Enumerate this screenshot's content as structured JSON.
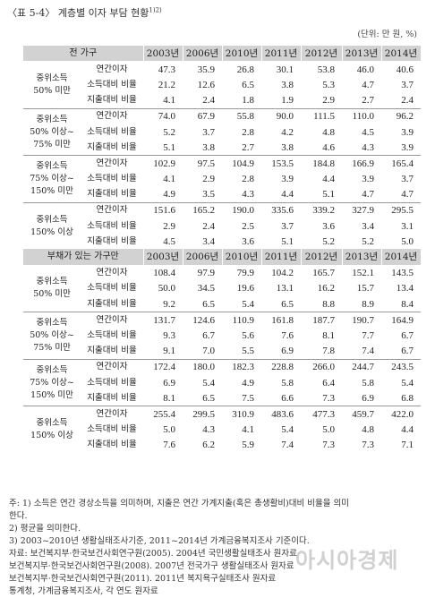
{
  "title": "〈표 5-4〉 계층별 이자 부담 현황",
  "title_sup": "1)2)",
  "unit": "(단위: 만 원, %)",
  "years": [
    "2003년",
    "2006년",
    "2010년",
    "2011년",
    "2012년",
    "2013년",
    "2014년"
  ],
  "metrics": [
    "연간이자",
    "소득대비 비율",
    "지출대비 비율"
  ],
  "sections": [
    {
      "label": "전 가구",
      "groups": [
        {
          "label": [
            "중위소득",
            "50% 미만"
          ],
          "rows": [
            [
              "47.3",
              "35.9",
              "26.8",
              "30.1",
              "53.8",
              "46.0",
              "40.6"
            ],
            [
              "21.2",
              "12.6",
              "6.5",
              "3.8",
              "5.3",
              "4.7",
              "3.7"
            ],
            [
              "4.1",
              "2.4",
              "1.8",
              "1.9",
              "2.9",
              "2.7",
              "2.4"
            ]
          ]
        },
        {
          "label": [
            "중위소득",
            "50% 이상~",
            "75% 미만"
          ],
          "rows": [
            [
              "74.0",
              "67.9",
              "55.8",
              "90.0",
              "111.5",
              "110.0",
              "96.2"
            ],
            [
              "5.2",
              "3.7",
              "2.8",
              "4.2",
              "4.8",
              "4.5",
              "3.9"
            ],
            [
              "5.1",
              "3.8",
              "2.7",
              "3.8",
              "4.6",
              "4.3",
              "3.9"
            ]
          ]
        },
        {
          "label": [
            "중위소득",
            "75% 이상~",
            "150% 미만"
          ],
          "rows": [
            [
              "102.9",
              "97.5",
              "104.9",
              "153.5",
              "184.8",
              "166.9",
              "165.4"
            ],
            [
              "4.1",
              "2.9",
              "2.8",
              "3.9",
              "4.4",
              "3.9",
              "3.7"
            ],
            [
              "4.9",
              "3.5",
              "4.3",
              "4.4",
              "5.1",
              "4.7",
              "4.7"
            ]
          ]
        },
        {
          "label": [
            "중위소득",
            "150% 이상"
          ],
          "rows": [
            [
              "151.6",
              "165.2",
              "190.0",
              "335.6",
              "339.2",
              "327.9",
              "295.5"
            ],
            [
              "2.9",
              "2.4",
              "2.5",
              "3.7",
              "3.6",
              "3.4",
              "3.1"
            ],
            [
              "4.5",
              "3.4",
              "3.6",
              "5.1",
              "5.2",
              "5.2",
              "5.0"
            ]
          ]
        }
      ]
    },
    {
      "label": "부채가 있는 가구만",
      "groups": [
        {
          "label": [
            "중위소득",
            "50% 미만"
          ],
          "rows": [
            [
              "108.4",
              "97.9",
              "79.9",
              "104.2",
              "165.7",
              "152.1",
              "143.5"
            ],
            [
              "50.0",
              "34.5",
              "19.6",
              "13.1",
              "16.2",
              "15.7",
              "13.4"
            ],
            [
              "9.2",
              "6.5",
              "5.4",
              "6.5",
              "8.8",
              "8.9",
              "8.4"
            ]
          ]
        },
        {
          "label": [
            "중위소득",
            "50% 이상~",
            "75% 미만"
          ],
          "rows": [
            [
              "131.7",
              "124.6",
              "110.9",
              "161.8",
              "187.7",
              "190.7",
              "164.9"
            ],
            [
              "9.3",
              "6.7",
              "5.6",
              "7.6",
              "8.1",
              "7.7",
              "6.7"
            ],
            [
              "9.1",
              "7.0",
              "5.5",
              "6.9",
              "7.8",
              "7.4",
              "6.7"
            ]
          ]
        },
        {
          "label": [
            "중위소득",
            "75% 이상~",
            "150% 미만"
          ],
          "rows": [
            [
              "172.4",
              "180.0",
              "182.3",
              "228.8",
              "266.0",
              "244.7",
              "243.5"
            ],
            [
              "6.9",
              "5.4",
              "4.9",
              "5.8",
              "6.4",
              "5.8",
              "5.4"
            ],
            [
              "8.1",
              "6.5",
              "7.5",
              "6.6",
              "7.3",
              "6.9",
              "6.8"
            ]
          ]
        },
        {
          "label": [
            "중위소득",
            "150% 이상"
          ],
          "rows": [
            [
              "255.4",
              "299.5",
              "310.9",
              "483.6",
              "477.3",
              "459.7",
              "422.0"
            ],
            [
              "5.0",
              "4.3",
              "4.1",
              "5.4",
              "5.0",
              "4.8",
              "4.4"
            ],
            [
              "7.6",
              "6.2",
              "5.9",
              "7.4",
              "7.3",
              "7.3",
              "7.1"
            ]
          ]
        }
      ]
    }
  ],
  "notes": [
    "주: 1) 소득은 연간 경상소득을 의미하며, 지출은 연간 가계지출(혹은 총생활비)대비 비율을 의미",
    "       한다.",
    "     2) 평균을 의미한다.",
    "     3) 2003~2010년 생활실태조사기준, 2011~2014년 가계금융복지조사 기준이다.",
    "자료: 보건복지부·한국보건사회연구원(2005). 2004년 국민생활실태조사 원자료",
    "       보건복지부·한국보건사회연구원(2008). 2007년 전국가구 생활실태조사 원자료",
    "       보건복지부·한국보건사회연구원(2011). 2011년 복지욕구실태조사 원자료",
    "       통계청, 가계금융복지조사, 각 연도 원자료"
  ],
  "watermark": "아시아경제"
}
